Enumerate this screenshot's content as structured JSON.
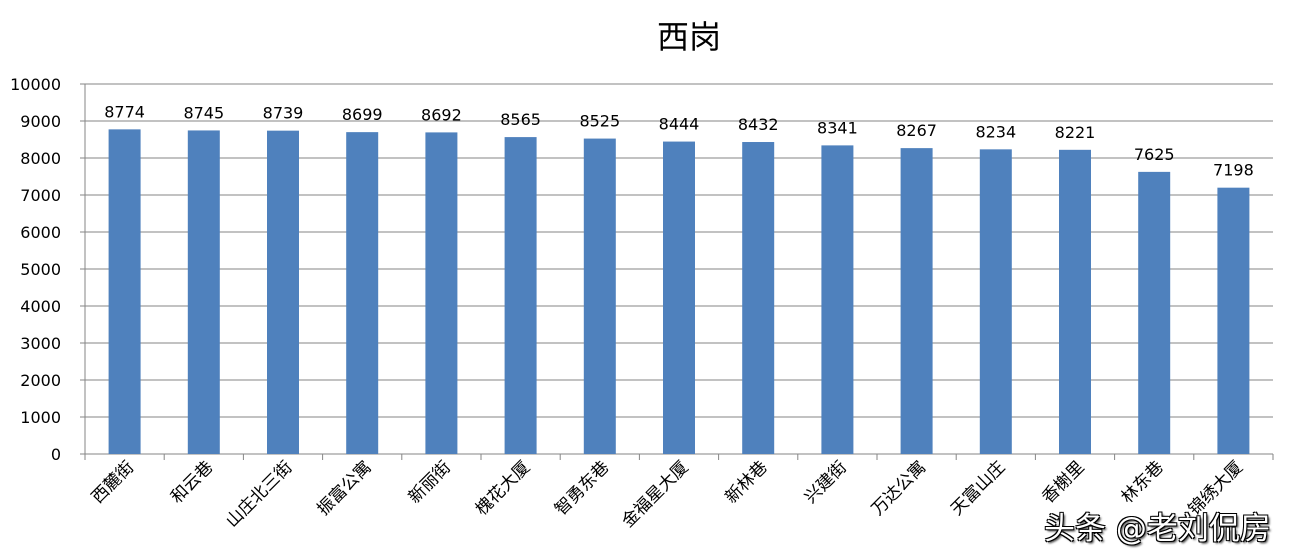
{
  "chart_data": {
    "type": "bar",
    "title": "西岗",
    "xlabel": "",
    "ylabel": "",
    "ylim": [
      0,
      10000
    ],
    "yticks": [
      0,
      1000,
      2000,
      3000,
      4000,
      5000,
      6000,
      7000,
      8000,
      9000,
      10000
    ],
    "grid": true,
    "legend": "none",
    "bar_color": "#4F81BD",
    "categories": [
      "西麓街",
      "和云巷",
      "山庄北三街",
      "振富公寓",
      "新丽街",
      "槐花大厦",
      "智勇东巷",
      "金福星大厦",
      "新林巷",
      "兴建街",
      "万达公寓",
      "天富山庄",
      "香榭里",
      "林东巷",
      "锦绣大厦"
    ],
    "values": [
      8774,
      8745,
      8739,
      8699,
      8692,
      8565,
      8525,
      8444,
      8432,
      8341,
      8267,
      8234,
      8221,
      7625,
      7198
    ]
  },
  "watermark": "头条 @老刘侃房"
}
